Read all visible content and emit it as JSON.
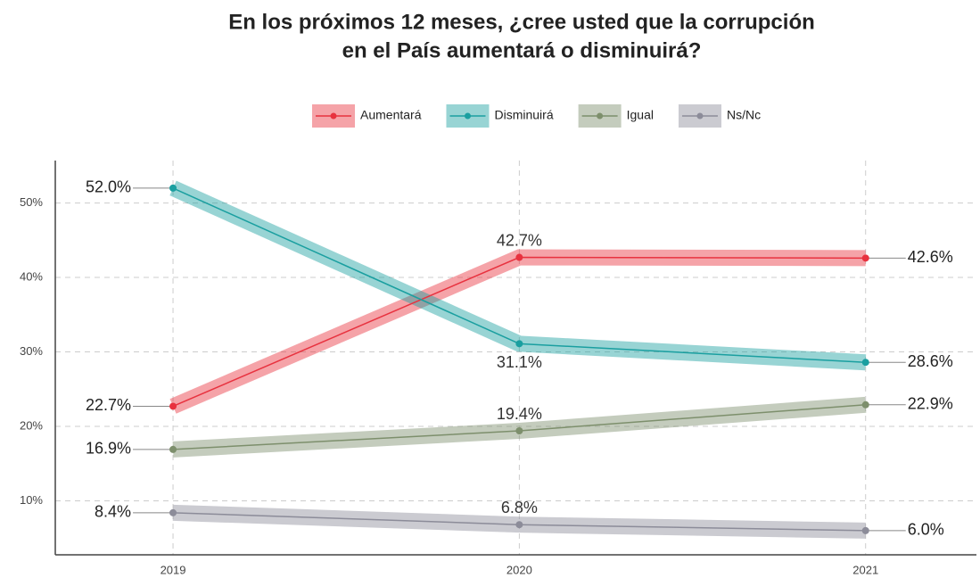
{
  "chart_data": {
    "type": "line",
    "title": [
      "En los próximos 12 meses, ¿cree usted que la corrupción",
      "en el País aumentará o disminuirá?"
    ],
    "x": [
      2019,
      2020,
      2021
    ],
    "xlim": [
      2018.66,
      2021.32
    ],
    "xticks": [
      2019,
      2020,
      2021
    ],
    "ylim": [
      2.75,
      55.7
    ],
    "yticks": [
      {
        "value": 10,
        "label": "10%"
      },
      {
        "value": 20,
        "label": "20%"
      },
      {
        "value": 30,
        "label": "30%"
      },
      {
        "value": 40,
        "label": "40%"
      },
      {
        "value": 50,
        "label": "50%"
      }
    ],
    "grid": true,
    "legend": "top",
    "series": [
      {
        "name": "Aumentará",
        "color": "#e8323f",
        "values": [
          22.7,
          42.7,
          42.6
        ],
        "value_labels": [
          "22.7%",
          "42.7%",
          "42.6%"
        ]
      },
      {
        "name": "Disminuirá",
        "color": "#1a9fa0",
        "values": [
          52.0,
          31.1,
          28.6
        ],
        "value_labels": [
          "52.0%",
          "31.1%",
          "28.6%"
        ]
      },
      {
        "name": "Igual",
        "color": "#7d8f6c",
        "values": [
          16.9,
          19.4,
          22.9
        ],
        "value_labels": [
          "16.9%",
          "19.4%",
          "22.9%"
        ]
      },
      {
        "name": "Ns/Nc",
        "color": "#8c8c99",
        "values": [
          8.4,
          6.8,
          6.0
        ],
        "value_labels": [
          "8.4%",
          "6.8%",
          "6.0%"
        ]
      }
    ]
  }
}
